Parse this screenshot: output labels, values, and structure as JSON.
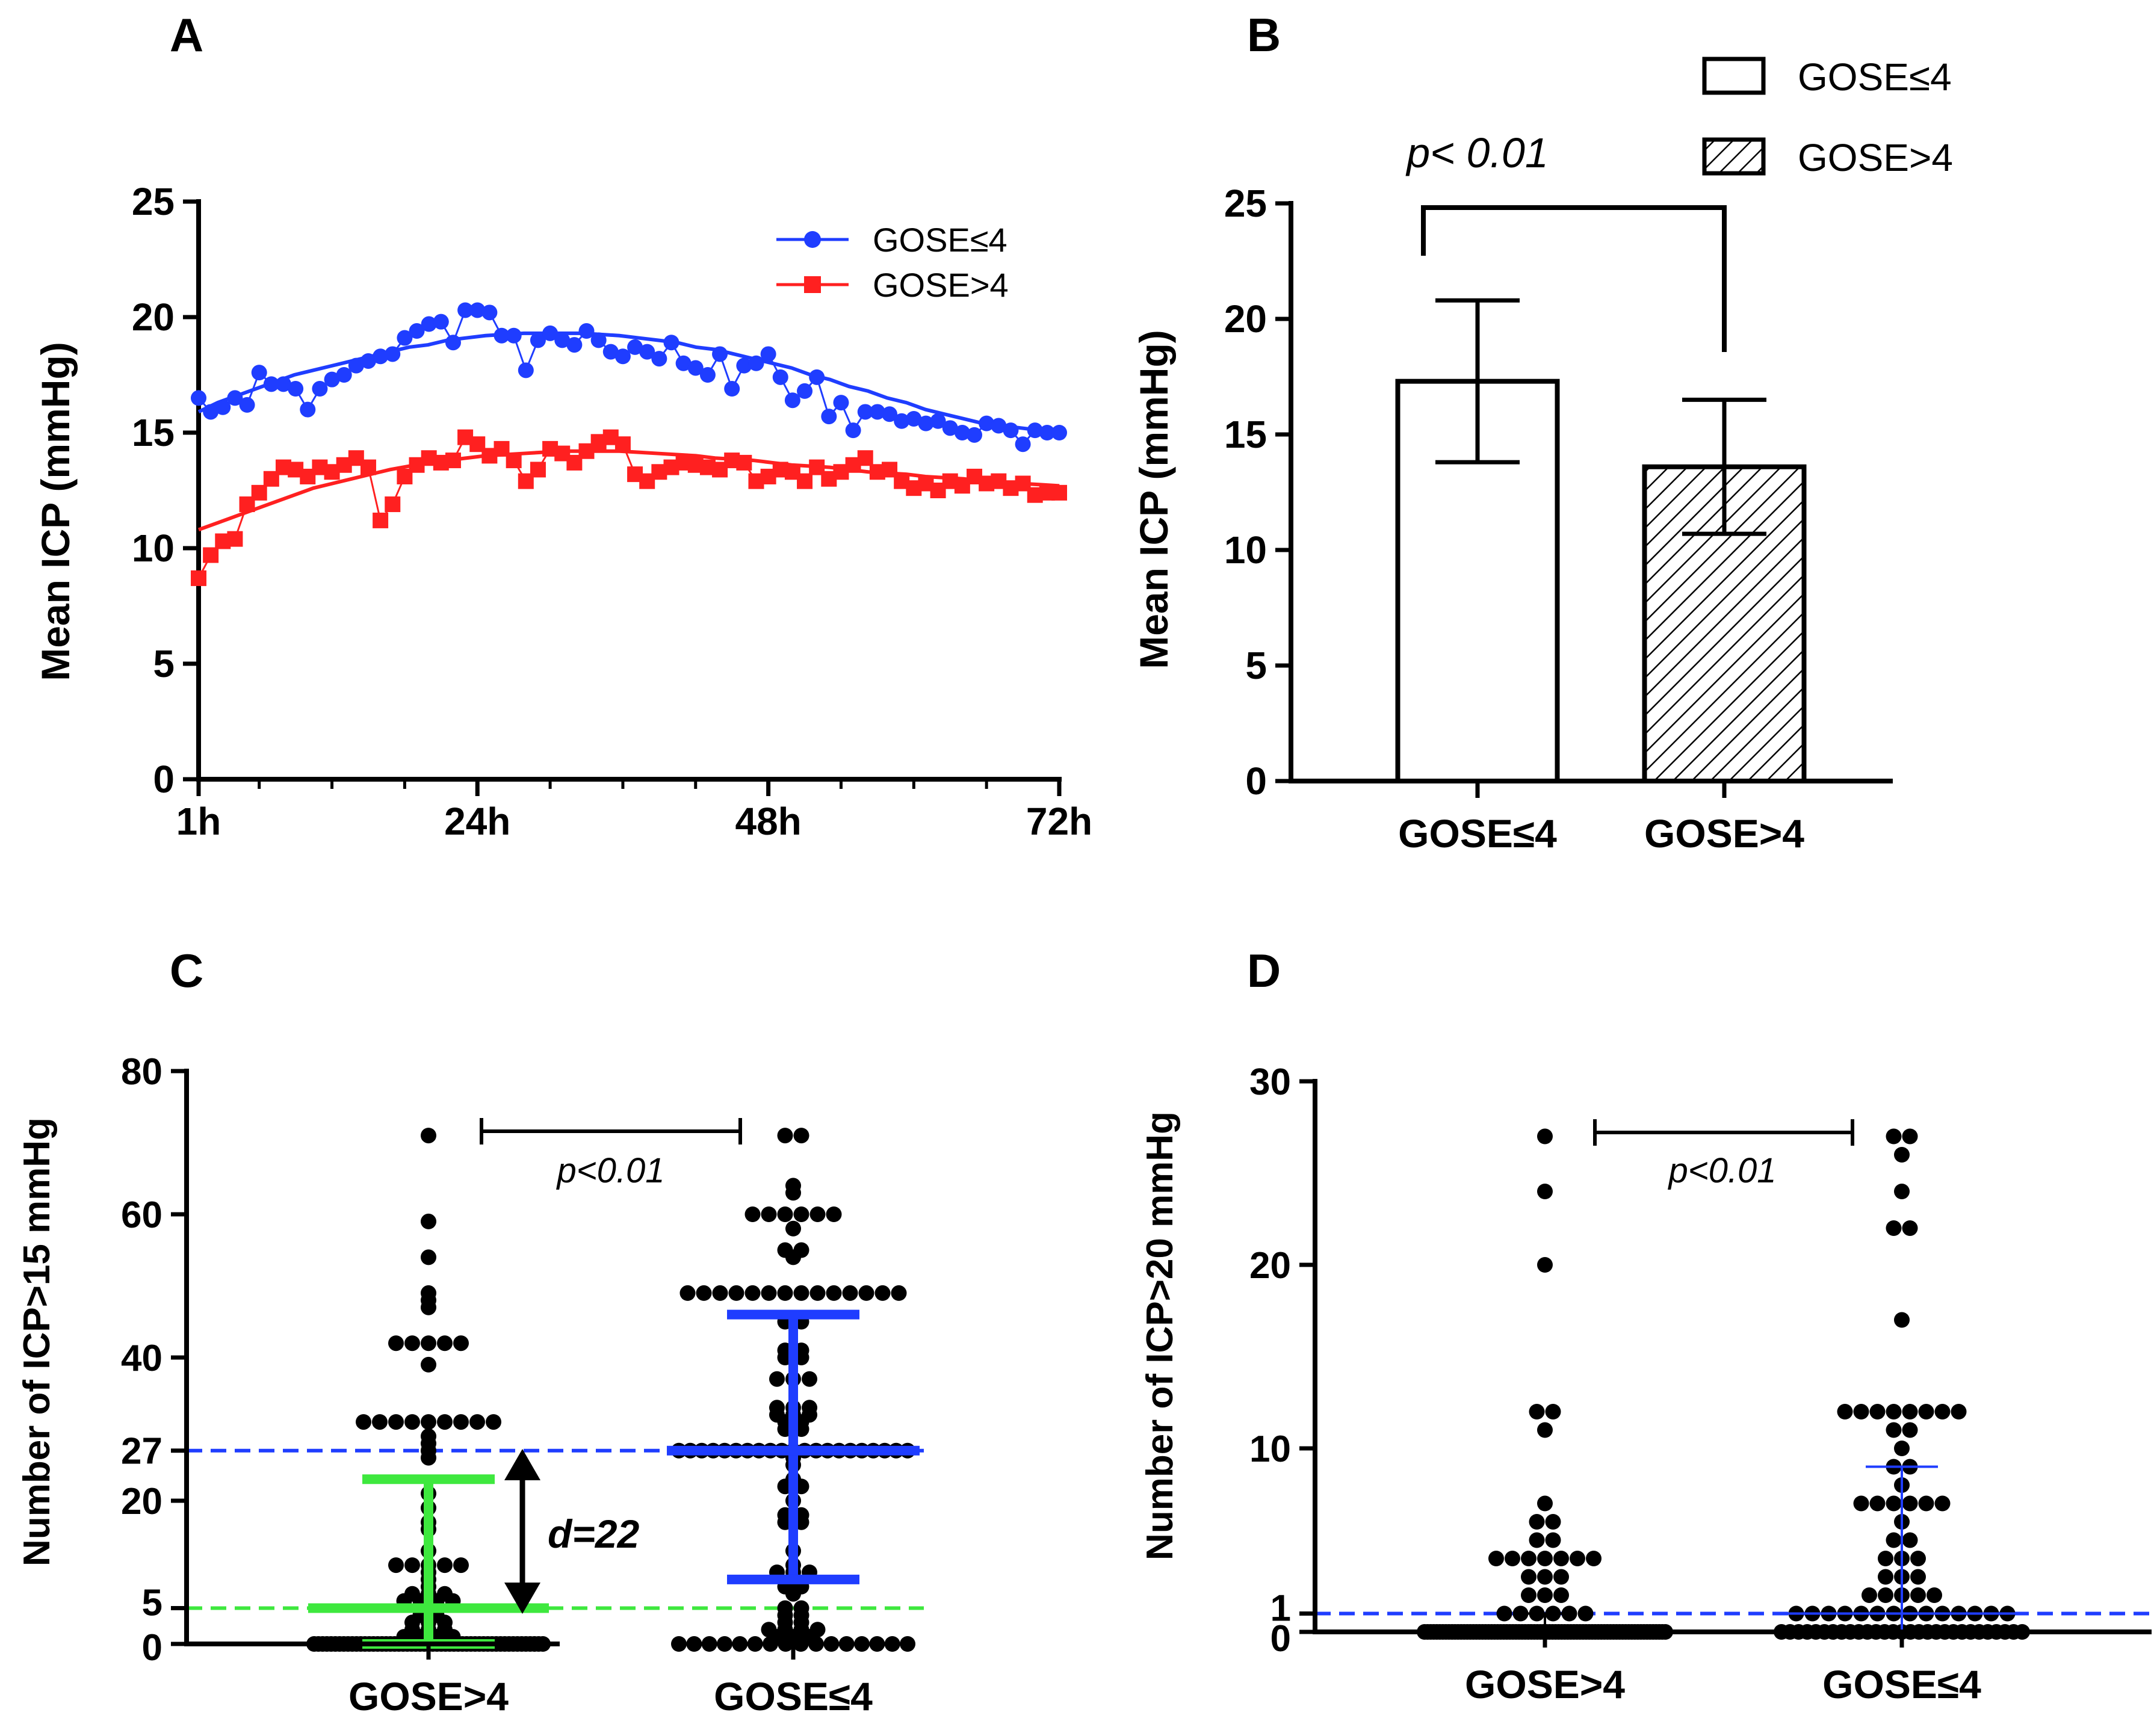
{
  "figure": {
    "panel_labels": [
      "A",
      "B",
      "C",
      "D"
    ]
  },
  "colors": {
    "blue": "#1f3dff",
    "red": "#ff2020",
    "green": "#3ee83e",
    "black": "#000000"
  },
  "chart_data": [
    {
      "id": "A",
      "type": "line",
      "title": "",
      "xlabel": "",
      "ylabel": "Mean ICP (mmHg)",
      "xlim": [
        1,
        72
      ],
      "ylim": [
        0,
        25
      ],
      "yticks": [
        0,
        5,
        10,
        15,
        20,
        25
      ],
      "xtick_labels": [
        {
          "x": 1,
          "label": "1h"
        },
        {
          "x": 24,
          "label": "24h"
        },
        {
          "x": 48,
          "label": "48h"
        },
        {
          "x": 72,
          "label": "72h"
        }
      ],
      "minor_xticks": [
        6,
        12,
        18,
        30,
        36,
        42,
        54,
        60,
        66
      ],
      "legend": {
        "position": "top-right",
        "entries": [
          "GOSE≤4",
          "GOSE>4"
        ]
      },
      "series": [
        {
          "name": "GOSE≤4",
          "color": "#1f3dff",
          "marker": "circle",
          "x": [
            1,
            2,
            3,
            4,
            5,
            6,
            7,
            8,
            9,
            10,
            11,
            12,
            13,
            14,
            15,
            16,
            17,
            18,
            19,
            20,
            21,
            22,
            23,
            24,
            25,
            26,
            27,
            28,
            29,
            30,
            31,
            32,
            33,
            34,
            35,
            36,
            37,
            38,
            39,
            40,
            41,
            42,
            43,
            44,
            45,
            46,
            47,
            48,
            49,
            50,
            51,
            52,
            53,
            54,
            55,
            56,
            57,
            58,
            59,
            60,
            61,
            62,
            63,
            64,
            65,
            66,
            67,
            68,
            69,
            70,
            71,
            72
          ],
          "values": [
            16.5,
            15.9,
            16.1,
            16.5,
            16.2,
            17.6,
            17.1,
            17.1,
            16.9,
            16.0,
            16.9,
            17.3,
            17.5,
            17.9,
            18.1,
            18.3,
            18.4,
            19.1,
            19.4,
            19.7,
            19.8,
            18.9,
            20.3,
            20.3,
            20.2,
            19.2,
            19.2,
            17.7,
            19.0,
            19.3,
            19.0,
            18.8,
            19.4,
            19.0,
            18.5,
            18.3,
            18.7,
            18.5,
            18.2,
            18.9,
            18.0,
            17.8,
            17.5,
            18.4,
            16.9,
            17.9,
            18.0,
            18.4,
            17.4,
            16.4,
            16.8,
            17.4,
            15.7,
            16.3,
            15.1,
            15.9,
            15.9,
            15.8,
            15.5,
            15.6,
            15.4,
            15.5,
            15.2,
            15.0,
            14.9,
            15.4,
            15.3,
            15.1,
            14.5,
            15.1,
            15.0,
            15.0
          ],
          "fit": [
            15.9,
            16.3,
            16.6,
            16.9,
            17.2,
            17.5,
            17.7,
            17.9,
            18.1,
            18.3,
            18.5,
            18.7,
            18.8,
            19.0,
            19.1,
            19.2,
            19.25,
            19.3,
            19.3,
            19.3,
            19.3,
            19.25,
            19.2,
            19.1,
            19.0,
            18.9,
            18.7,
            18.6,
            18.4,
            18.2,
            18.0,
            17.8,
            17.5,
            17.3,
            17.0,
            16.8,
            16.5,
            16.3,
            16.0,
            15.8,
            15.6,
            15.4,
            15.3,
            15.2,
            15.1,
            15.0
          ]
        },
        {
          "name": "GOSE>4",
          "color": "#ff2020",
          "marker": "square",
          "x": [
            1,
            2,
            3,
            4,
            5,
            6,
            7,
            8,
            9,
            10,
            11,
            12,
            13,
            14,
            15,
            16,
            17,
            18,
            19,
            20,
            21,
            22,
            23,
            24,
            25,
            26,
            27,
            28,
            29,
            30,
            31,
            32,
            33,
            34,
            35,
            36,
            37,
            38,
            39,
            40,
            41,
            42,
            43,
            44,
            45,
            46,
            47,
            48,
            49,
            50,
            51,
            52,
            53,
            54,
            55,
            56,
            57,
            58,
            59,
            60,
            61,
            62,
            63,
            64,
            65,
            66,
            67,
            68,
            69,
            70,
            71,
            72
          ],
          "values": [
            8.7,
            9.7,
            10.3,
            10.4,
            11.9,
            12.4,
            13.0,
            13.5,
            13.4,
            13.1,
            13.5,
            13.3,
            13.6,
            13.9,
            13.5,
            11.2,
            11.9,
            13.1,
            13.6,
            13.9,
            13.7,
            13.8,
            14.8,
            14.5,
            14.0,
            14.3,
            13.8,
            12.9,
            13.4,
            14.3,
            14.1,
            13.7,
            14.2,
            14.6,
            14.8,
            14.5,
            13.2,
            12.9,
            13.3,
            13.5,
            13.7,
            13.6,
            13.5,
            13.4,
            13.8,
            13.7,
            12.9,
            13.1,
            13.4,
            13.3,
            12.9,
            13.5,
            13.0,
            13.3,
            13.6,
            13.9,
            13.3,
            13.4,
            12.9,
            12.6,
            12.8,
            12.5,
            12.9,
            12.7,
            13.1,
            12.8,
            12.9,
            12.6,
            12.8,
            12.3,
            12.4,
            12.4
          ],
          "fit": [
            10.8,
            11.1,
            11.4,
            11.7,
            12.0,
            12.3,
            12.6,
            12.8,
            13.0,
            13.2,
            13.4,
            13.55,
            13.7,
            13.8,
            13.9,
            14.0,
            14.05,
            14.1,
            14.15,
            14.2,
            14.2,
            14.2,
            14.2,
            14.15,
            14.1,
            14.05,
            14.0,
            13.9,
            13.85,
            13.8,
            13.7,
            13.6,
            13.55,
            13.5,
            13.4,
            13.3,
            13.25,
            13.2,
            13.1,
            13.05,
            13.0,
            12.9,
            12.85,
            12.8,
            12.75,
            12.7
          ]
        }
      ],
      "fit_x_step": 1.578
    },
    {
      "id": "B",
      "type": "bar",
      "xlabel": "",
      "ylabel": "Mean ICP (mmHg)",
      "ylim": [
        0,
        25
      ],
      "yticks": [
        0,
        5,
        10,
        15,
        20,
        25
      ],
      "categories": [
        "GOSE≤4",
        "GOSE>4"
      ],
      "values": [
        17.3,
        13.6
      ],
      "error_low": [
        13.8,
        10.7
      ],
      "error_high": [
        20.8,
        16.5
      ],
      "fill": [
        "open",
        "hatched"
      ],
      "legend": {
        "position": "top-right",
        "entries": [
          "GOSE≤4",
          "GOSE>4"
        ]
      },
      "annotation": "p< 0.01"
    },
    {
      "id": "C",
      "type": "scatter",
      "ylabel": "Number of  ICP>15 mmHg",
      "ylim": [
        0,
        80
      ],
      "yticks": [
        0,
        5,
        20,
        27,
        40,
        60,
        80
      ],
      "categories": [
        "GOSE>4",
        "GOSE≤4"
      ],
      "reference_lines": [
        {
          "y": 27,
          "color": "#1f3dff",
          "style": "dashed"
        },
        {
          "y": 5,
          "color": "#3ee83e",
          "style": "dashed"
        }
      ],
      "groups": [
        {
          "name": "GOSE>4",
          "median": 5,
          "q1": 0,
          "q3": 23,
          "summary_color": "#3ee83e",
          "values": [
            71,
            59,
            54,
            49,
            48,
            47,
            42,
            42,
            42,
            42,
            42,
            39,
            31,
            31,
            31,
            31,
            31,
            31,
            31,
            31,
            31,
            29,
            28,
            27,
            26,
            21,
            19,
            17,
            16,
            13,
            11,
            11,
            11,
            11,
            11,
            10,
            9,
            8,
            7,
            7,
            7,
            6,
            6,
            6,
            6,
            5,
            4,
            4,
            3,
            3,
            3,
            2,
            2,
            2,
            1,
            1,
            1,
            1,
            0,
            0,
            0,
            0,
            0,
            0,
            0,
            0,
            0,
            0,
            0,
            0,
            0,
            0,
            0,
            0,
            0,
            0,
            0,
            0,
            0,
            0,
            0,
            0,
            0,
            0,
            0,
            0,
            0,
            0,
            0,
            0,
            0,
            0,
            0,
            0,
            0,
            0,
            0,
            0,
            0,
            0,
            0,
            0,
            0,
            0,
            0,
            0,
            0,
            0,
            0,
            0,
            0,
            0,
            0
          ]
        },
        {
          "name": "GOSE≤4",
          "median": 27,
          "q1": 9,
          "q3": 46,
          "summary_color": "#1f3dff",
          "values": [
            71,
            71,
            64,
            63,
            60,
            60,
            60,
            60,
            60,
            60,
            58,
            55,
            55,
            54,
            49,
            49,
            49,
            49,
            49,
            49,
            49,
            49,
            49,
            49,
            49,
            49,
            49,
            49,
            45,
            45,
            41,
            41,
            40,
            40,
            37,
            37,
            37,
            33,
            33,
            33,
            32,
            32,
            32,
            31,
            31,
            30,
            30,
            27,
            27,
            27,
            27,
            27,
            27,
            27,
            27,
            27,
            27,
            27,
            27,
            27,
            27,
            27,
            27,
            27,
            27,
            27,
            27,
            27,
            26,
            25,
            23,
            22,
            22,
            20,
            18,
            18,
            17,
            17,
            13,
            11,
            10,
            10,
            10,
            9,
            8,
            8,
            7,
            5,
            5,
            4,
            4,
            3,
            3,
            2,
            2,
            2,
            2,
            1,
            1,
            1,
            0,
            0,
            0,
            0,
            0,
            0,
            0,
            0,
            0,
            0,
            0,
            0,
            0,
            0,
            0,
            0
          ]
        }
      ],
      "annotations": {
        "p_value": "p<0.01",
        "difference": "d=22"
      }
    },
    {
      "id": "D",
      "type": "scatter",
      "ylabel": "Number of ICP>20 mmHg",
      "ylim": [
        0,
        30
      ],
      "yticks": [
        0,
        1,
        10,
        20,
        30
      ],
      "categories": [
        "GOSE>4",
        "GOSE≤4"
      ],
      "reference_lines": [
        {
          "y": 1,
          "color": "#1f3dff",
          "style": "dashed"
        }
      ],
      "groups": [
        {
          "name": "GOSE>4",
          "median": 0,
          "q1": 0,
          "q3": 1,
          "summary_color": "#000000",
          "values": [
            27,
            24,
            20,
            12,
            12,
            11,
            7,
            6,
            6,
            5,
            5,
            4,
            4,
            4,
            4,
            4,
            4,
            4,
            3,
            3,
            3,
            2,
            2,
            2,
            1,
            1,
            1,
            1,
            1,
            1,
            0,
            0,
            0,
            0,
            0,
            0,
            0,
            0,
            0,
            0,
            0,
            0,
            0,
            0,
            0,
            0,
            0,
            0,
            0,
            0,
            0,
            0,
            0,
            0,
            0,
            0,
            0,
            0,
            0,
            0,
            0,
            0,
            0,
            0,
            0,
            0,
            0,
            0,
            0,
            0,
            0,
            0,
            0,
            0,
            0,
            0,
            0,
            0,
            0,
            0,
            0,
            0,
            0,
            0,
            0,
            0,
            0,
            0,
            0,
            0,
            0,
            0,
            0,
            0,
            0,
            0,
            0,
            0,
            0,
            0,
            0,
            0,
            0,
            0,
            0,
            0,
            0,
            0,
            0,
            0
          ]
        },
        {
          "name": "GOSE≤4",
          "median": 1,
          "q1": 0,
          "q3": 9,
          "summary_color": "#1f3dff",
          "values": [
            27,
            27,
            26,
            24,
            22,
            22,
            17,
            12,
            12,
            12,
            12,
            12,
            12,
            12,
            12,
            11,
            11,
            10,
            9,
            9,
            8,
            7,
            7,
            7,
            7,
            7,
            7,
            6,
            5,
            5,
            4,
            4,
            4,
            3,
            3,
            3,
            2,
            2,
            2,
            2,
            2,
            1,
            1,
            1,
            1,
            1,
            1,
            1,
            1,
            1,
            1,
            1,
            1,
            1,
            1,
            0,
            0,
            0,
            0,
            0,
            0,
            0,
            0,
            0,
            0,
            0,
            0,
            0,
            0,
            0,
            0,
            0,
            0,
            0,
            0,
            0,
            0,
            0,
            0,
            0,
            0,
            0,
            0,
            0
          ]
        }
      ],
      "annotations": {
        "p_value": "p<0.01"
      }
    }
  ]
}
